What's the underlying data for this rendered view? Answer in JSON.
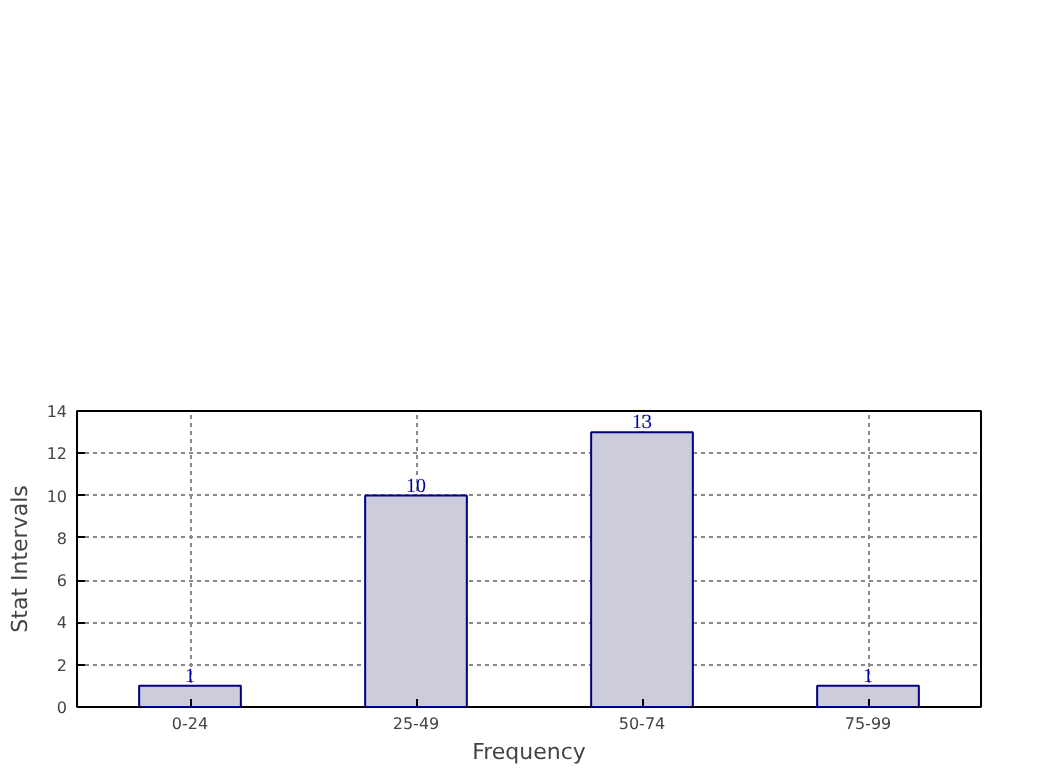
{
  "chart_data": {
    "type": "bar",
    "xlabel": "Frequency",
    "ylabel": "Stat Intervals",
    "categories": [
      "0-24",
      "25-49",
      "50-74",
      "75-99"
    ],
    "values": [
      1,
      10,
      13,
      1
    ],
    "color": "#ccccdd",
    "ylim": [
      0,
      14
    ],
    "yticks": [
      0,
      2,
      4,
      6,
      8,
      10,
      12,
      14
    ],
    "grid": true,
    "data_labels": true
  }
}
